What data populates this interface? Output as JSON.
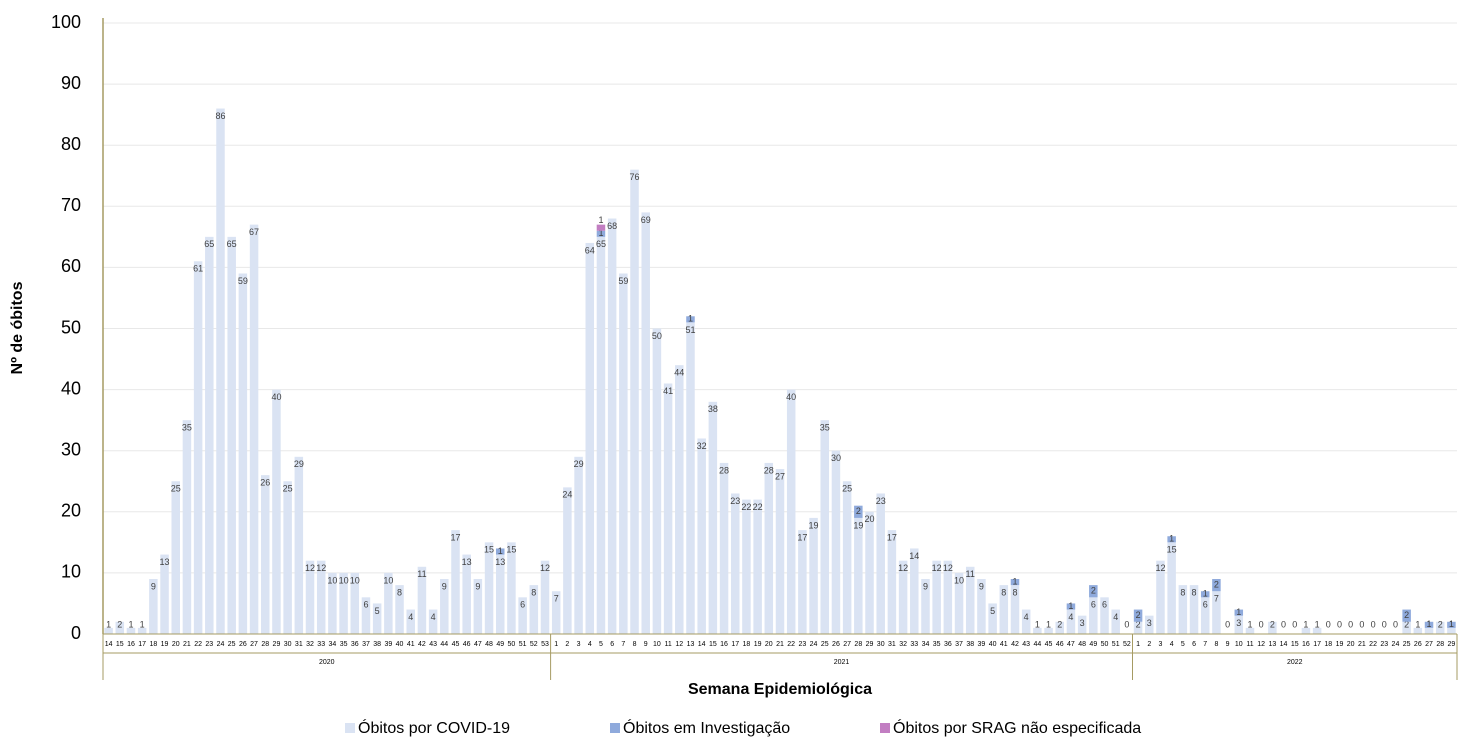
{
  "chart_data": {
    "type": "stacked_bar",
    "y_axis_label": "Nº de óbitos",
    "x_axis_label": "Semana Epidemiológica",
    "category_groups": [
      {
        "label": "2020",
        "categories": [
          "14",
          "15",
          "16",
          "17",
          "18",
          "19",
          "20",
          "21",
          "22",
          "23",
          "24",
          "25",
          "26",
          "27",
          "28",
          "29",
          "30",
          "31",
          "32",
          "33",
          "34",
          "35",
          "36",
          "37",
          "38",
          "39",
          "40",
          "41",
          "42",
          "43",
          "44",
          "45",
          "46",
          "47",
          "48",
          "49",
          "50",
          "51",
          "52",
          "53"
        ]
      },
      {
        "label": "2021",
        "categories": [
          "1",
          "2",
          "3",
          "4",
          "5",
          "6",
          "7",
          "8",
          "9",
          "10",
          "11",
          "12",
          "13",
          "14",
          "15",
          "16",
          "17",
          "18",
          "19",
          "20",
          "21",
          "22",
          "23",
          "24",
          "25",
          "26",
          "27",
          "28",
          "29",
          "30",
          "31",
          "32",
          "33",
          "34",
          "35",
          "36",
          "37",
          "38",
          "39",
          "40",
          "41",
          "42",
          "43",
          "44",
          "45",
          "46",
          "47",
          "48",
          "49",
          "50",
          "51",
          "52"
        ]
      },
      {
        "label": "2022",
        "categories": [
          "1",
          "2",
          "3",
          "4",
          "5",
          "6",
          "7",
          "8",
          "9",
          "10",
          "11",
          "12",
          "13",
          "14",
          "15",
          "16",
          "17",
          "18",
          "19",
          "20",
          "21",
          "22",
          "23",
          "24",
          "25",
          "26",
          "27",
          "28",
          "29"
        ]
      }
    ],
    "series": [
      {
        "name": "Óbitos por COVID-19",
        "color": "#dae3f3",
        "values": [
          1,
          2,
          1,
          1,
          9,
          13,
          25,
          35,
          61,
          65,
          86,
          65,
          59,
          67,
          26,
          40,
          25,
          29,
          12,
          12,
          10,
          10,
          10,
          6,
          5,
          10,
          8,
          4,
          11,
          4,
          9,
          17,
          13,
          9,
          15,
          13,
          15,
          6,
          8,
          12,
          7,
          24,
          29,
          64,
          65,
          68,
          59,
          76,
          69,
          50,
          41,
          44,
          51,
          32,
          38,
          28,
          23,
          22,
          22,
          28,
          27,
          40,
          17,
          19,
          35,
          30,
          25,
          19,
          20,
          23,
          17,
          12,
          14,
          9,
          12,
          12,
          10,
          11,
          9,
          5,
          8,
          8,
          4,
          1,
          1,
          2,
          4,
          3,
          6,
          6,
          4,
          0,
          2,
          3,
          12,
          15,
          8,
          8,
          6,
          7,
          0,
          3,
          1,
          0,
          2,
          0,
          0,
          1,
          1,
          0,
          0,
          0,
          0,
          0,
          0,
          0,
          2,
          1,
          1,
          2,
          1
        ]
      },
      {
        "name": "Óbitos em Investigação",
        "color": "#8faadc",
        "values": [
          null,
          null,
          null,
          null,
          null,
          null,
          null,
          null,
          null,
          null,
          null,
          null,
          null,
          null,
          null,
          null,
          null,
          null,
          null,
          null,
          null,
          null,
          null,
          null,
          null,
          null,
          null,
          null,
          null,
          null,
          null,
          null,
          null,
          null,
          null,
          1,
          null,
          null,
          null,
          null,
          null,
          null,
          null,
          null,
          1,
          null,
          null,
          null,
          null,
          null,
          null,
          null,
          1,
          null,
          null,
          null,
          null,
          null,
          null,
          null,
          null,
          null,
          null,
          null,
          null,
          null,
          null,
          2,
          null,
          null,
          null,
          null,
          null,
          null,
          null,
          null,
          null,
          null,
          null,
          null,
          null,
          1,
          null,
          null,
          null,
          null,
          1,
          null,
          2,
          null,
          null,
          null,
          2,
          null,
          null,
          1,
          null,
          null,
          1,
          2,
          null,
          1,
          null,
          null,
          null,
          null,
          null,
          null,
          null,
          null,
          null,
          null,
          null,
          null,
          null,
          null,
          2,
          null,
          1,
          null,
          1
        ]
      },
      {
        "name": "Óbitos por SRAG não especificada",
        "color": "#c27ec2",
        "values": [
          null,
          null,
          null,
          null,
          null,
          null,
          null,
          null,
          null,
          null,
          null,
          null,
          null,
          null,
          null,
          null,
          null,
          null,
          null,
          null,
          null,
          null,
          null,
          null,
          null,
          null,
          null,
          null,
          null,
          null,
          null,
          null,
          null,
          null,
          null,
          null,
          null,
          null,
          null,
          null,
          null,
          null,
          null,
          null,
          1,
          null,
          null,
          null,
          null,
          null,
          null,
          null,
          null,
          null,
          null,
          null,
          null,
          null,
          null,
          null,
          null,
          null,
          null,
          null,
          null,
          null,
          null,
          null,
          null,
          null,
          null,
          null,
          null,
          null,
          null,
          null,
          null,
          null,
          null,
          null,
          null,
          null,
          null,
          null,
          null,
          null,
          null,
          null,
          null,
          null,
          null,
          null,
          null,
          null,
          null,
          null,
          null,
          null,
          null,
          null,
          null,
          null,
          null,
          null,
          null,
          null,
          null,
          null,
          null,
          null,
          null,
          null,
          null,
          null,
          null,
          null,
          null,
          null,
          null,
          null,
          null
        ]
      }
    ],
    "ylim": [
      0,
      100
    ],
    "yticks": [
      0,
      10,
      20,
      30,
      40,
      50,
      60,
      70,
      80,
      90,
      100
    ],
    "grid": true,
    "legend": "bottom"
  }
}
